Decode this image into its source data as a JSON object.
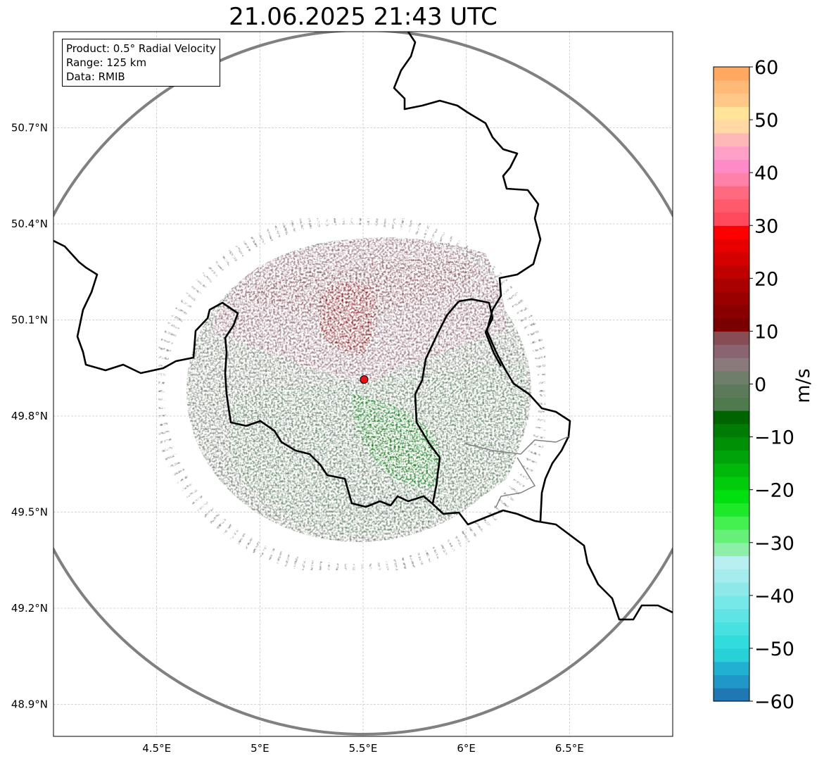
{
  "title": "21.06.2025 21:43 UTC",
  "info_box": {
    "product": "Product: 0.5° Radial Velocity",
    "range": "Range: 125 km",
    "data": "Data: RMIB"
  },
  "map": {
    "lon_range": [
      4.0,
      7.0
    ],
    "lat_range": [
      48.8,
      51.0
    ],
    "x_ticks": [
      "4.5°E",
      "5°E",
      "5.5°E",
      "6°E",
      "6.5°E"
    ],
    "x_tick_values": [
      4.5,
      5.0,
      5.5,
      6.0,
      6.5
    ],
    "y_ticks": [
      "50.7°N",
      "50.4°N",
      "50.1°N",
      "49.8°N",
      "49.5°N",
      "49.2°N",
      "48.9°N"
    ],
    "y_tick_values": [
      50.7,
      50.4,
      50.1,
      49.8,
      49.5,
      49.2,
      48.9
    ],
    "radar_site": {
      "lon": 5.505,
      "lat": 49.914
    },
    "range_km": 125,
    "grid": true
  },
  "colorbar": {
    "label": "m/s",
    "min": -60,
    "max": 60,
    "ticks": [
      "60",
      "50",
      "40",
      "30",
      "20",
      "10",
      "0",
      "−10",
      "−20",
      "−30",
      "−40",
      "−50",
      "−60"
    ],
    "tick_values": [
      60,
      50,
      40,
      30,
      20,
      10,
      0,
      -10,
      -20,
      -30,
      -40,
      -50,
      -60
    ],
    "colors": {
      "inbound_strong": "#006400",
      "inbound_weak": "#5a7a5a",
      "near_zero": "#7d7d75",
      "outbound_weak": "#8a6470",
      "outbound_strong": "#7a0e12",
      "accent": "#ff0000"
    }
  }
}
